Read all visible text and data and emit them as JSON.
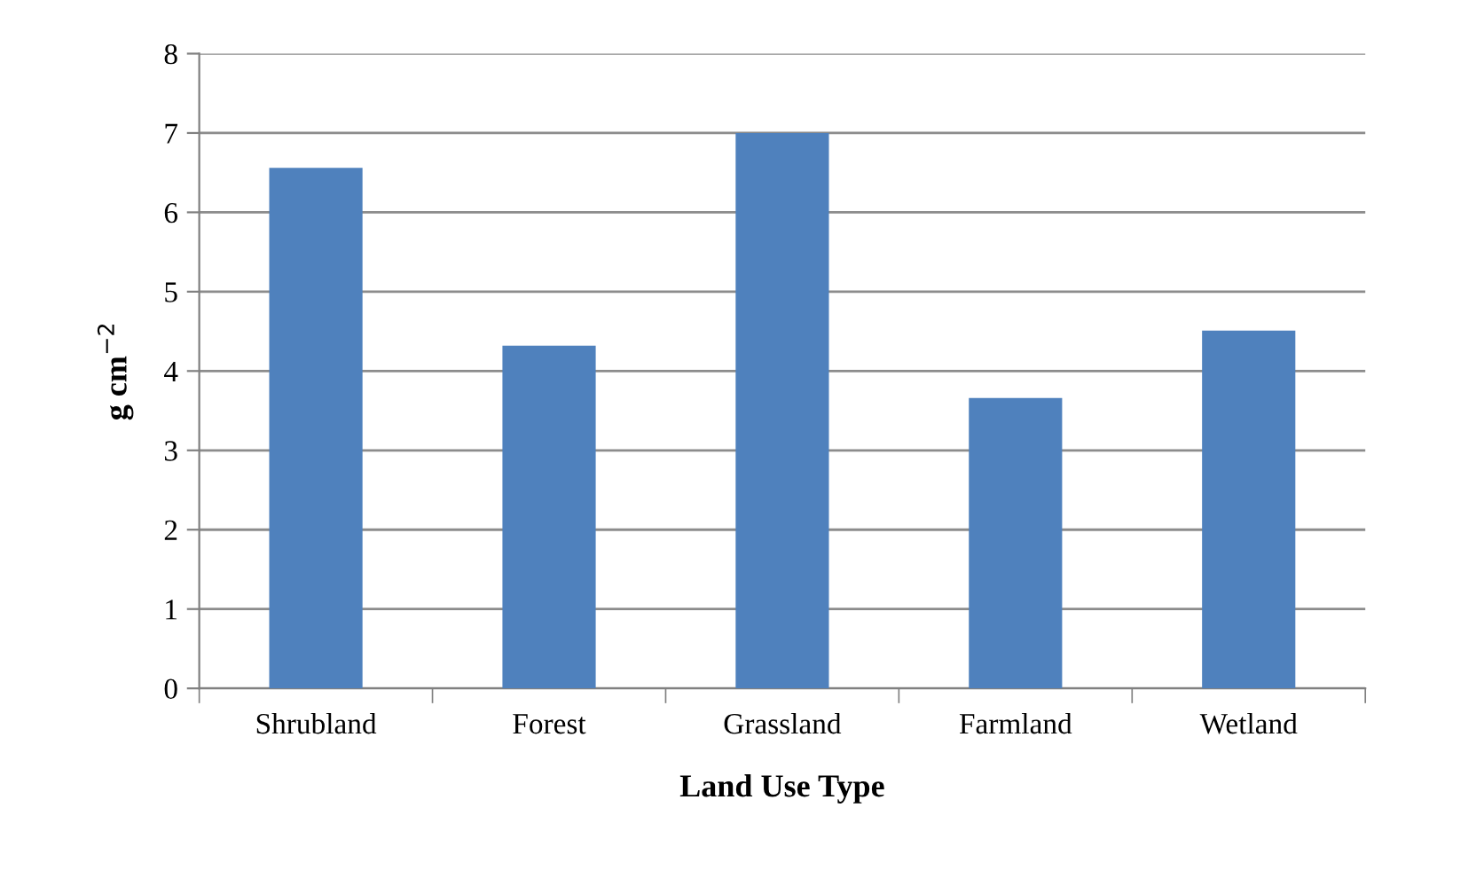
{
  "chart_data": {
    "type": "bar",
    "xlabel": "Land Use Type",
    "ylabel": "g cm$^{−2}$",
    "categories": [
      "Shrubland",
      "Forest",
      "Grassland",
      "Farmland",
      "Wetland"
    ],
    "values": [
      6.56,
      4.32,
      7.0,
      3.66,
      4.51
    ],
    "color": "#4f81bd",
    "ylim": [
      0,
      8
    ],
    "yticks": [
      0,
      1,
      2,
      3,
      4,
      5,
      6,
      7,
      8
    ],
    "grid": "y"
  }
}
